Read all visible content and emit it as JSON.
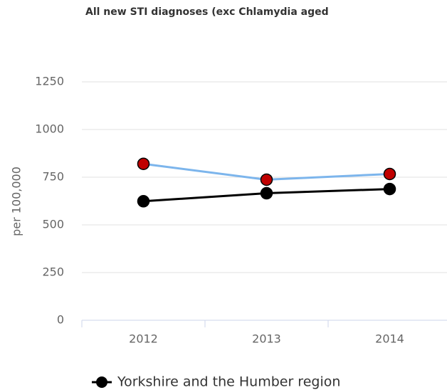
{
  "chart_data": {
    "type": "line",
    "title": "All new STI diagnoses (exc Chlamydia aged",
    "y_label": "per 100,000",
    "categories": [
      "2012",
      "2013",
      "2014"
    ],
    "series": [
      {
        "color": "#7cb5ec",
        "marker_color": "#c00000",
        "values": [
          820,
          737,
          767
        ]
      },
      {
        "name": "Yorkshire and the Humber region",
        "color": "#000000",
        "marker_color": "#000000",
        "values": [
          624,
          666,
          688
        ],
        "legend": true
      }
    ],
    "ylim": [
      0,
      1250
    ],
    "yticks": [
      0,
      250,
      500,
      750,
      1000,
      1250
    ],
    "grid": true
  }
}
